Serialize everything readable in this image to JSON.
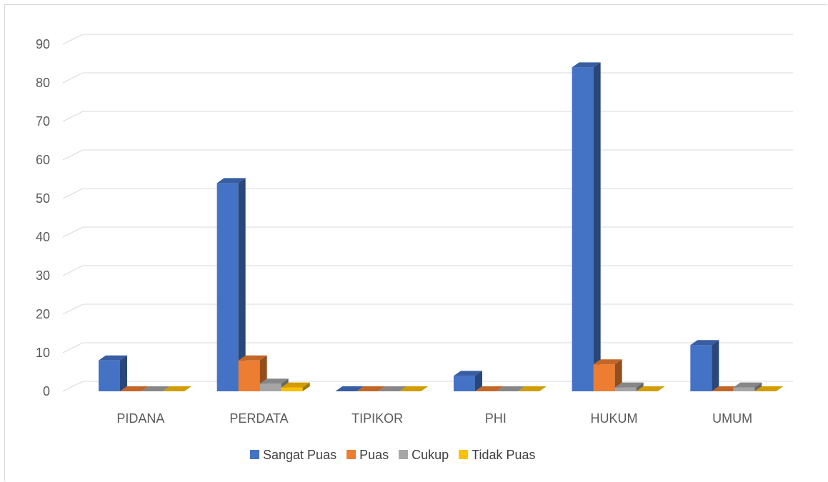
{
  "chart_data": {
    "type": "bar",
    "categories": [
      "PIDANA",
      "PERDATA",
      "TIPIKOR",
      "PHI",
      "HUKUM",
      "UMUM"
    ],
    "series": [
      {
        "name": "Sangat Puas",
        "values": [
          8,
          54,
          0,
          4,
          84,
          12
        ],
        "color": "#4472C4"
      },
      {
        "name": "Puas",
        "values": [
          0,
          8,
          0,
          0,
          7,
          0
        ],
        "color": "#ED7D31"
      },
      {
        "name": "Cukup",
        "values": [
          0,
          2,
          0,
          0,
          1,
          1
        ],
        "color": "#A5A5A5"
      },
      {
        "name": "Tidak Puas",
        "values": [
          0,
          1,
          0,
          0,
          0,
          0
        ],
        "color": "#FFC000"
      }
    ],
    "ylim": [
      0,
      90
    ],
    "yticks": [
      0,
      10,
      20,
      30,
      40,
      50,
      60,
      70,
      80,
      90
    ],
    "grid": true,
    "legend_position": "bottom",
    "style": "3d-column"
  }
}
